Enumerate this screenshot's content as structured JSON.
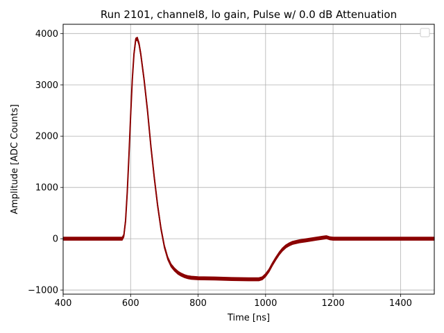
{
  "chart_data": {
    "type": "line",
    "title": "Run 2101, channel8, lo gain, Pulse w/ 0.0 dB Attenuation",
    "xlabel": "Time [ns]",
    "ylabel": "Amplitude [ADC Counts]",
    "xlim": [
      400,
      1500
    ],
    "ylim": [
      -1080,
      4180
    ],
    "x_ticks": [
      400,
      600,
      800,
      1000,
      1200,
      1400
    ],
    "y_ticks": [
      -1000,
      0,
      1000,
      2000,
      3000,
      4000
    ],
    "grid": true,
    "legend": {
      "position": "top-right",
      "entries": []
    },
    "series": [
      {
        "color": "#8b0000",
        "band_halfwidth": 30,
        "points": [
          [
            400,
            0
          ],
          [
            560,
            0
          ],
          [
            575,
            0
          ],
          [
            580,
            60
          ],
          [
            585,
            350
          ],
          [
            590,
            900
          ],
          [
            595,
            1600
          ],
          [
            600,
            2400
          ],
          [
            605,
            3100
          ],
          [
            610,
            3600
          ],
          [
            615,
            3880
          ],
          [
            620,
            3900
          ],
          [
            625,
            3800
          ],
          [
            630,
            3600
          ],
          [
            640,
            3100
          ],
          [
            650,
            2500
          ],
          [
            660,
            1800
          ],
          [
            670,
            1200
          ],
          [
            680,
            650
          ],
          [
            690,
            200
          ],
          [
            700,
            -150
          ],
          [
            710,
            -380
          ],
          [
            720,
            -520
          ],
          [
            730,
            -600
          ],
          [
            740,
            -660
          ],
          [
            750,
            -700
          ],
          [
            760,
            -730
          ],
          [
            770,
            -750
          ],
          [
            780,
            -760
          ],
          [
            800,
            -770
          ],
          [
            850,
            -775
          ],
          [
            900,
            -785
          ],
          [
            950,
            -790
          ],
          [
            980,
            -790
          ],
          [
            990,
            -770
          ],
          [
            1000,
            -710
          ],
          [
            1010,
            -620
          ],
          [
            1020,
            -500
          ],
          [
            1030,
            -390
          ],
          [
            1040,
            -290
          ],
          [
            1050,
            -210
          ],
          [
            1060,
            -150
          ],
          [
            1070,
            -110
          ],
          [
            1080,
            -80
          ],
          [
            1100,
            -50
          ],
          [
            1120,
            -30
          ],
          [
            1150,
            0
          ],
          [
            1170,
            20
          ],
          [
            1180,
            30
          ],
          [
            1190,
            10
          ],
          [
            1200,
            0
          ],
          [
            1300,
            0
          ],
          [
            1500,
            0
          ]
        ]
      }
    ]
  }
}
